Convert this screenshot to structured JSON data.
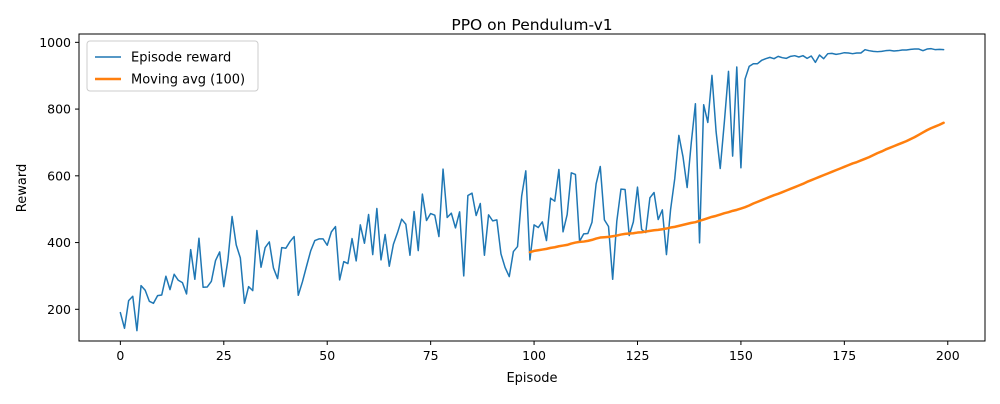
{
  "chart_data": {
    "type": "line",
    "title": "PPO on Pendulum-v1",
    "xlabel": "Episode",
    "ylabel": "Reward",
    "xlim": [
      -10,
      209
    ],
    "ylim": [
      105,
      1025
    ],
    "xticks": [
      0,
      25,
      50,
      75,
      100,
      125,
      150,
      175,
      200
    ],
    "yticks": [
      200,
      400,
      600,
      800,
      1000
    ],
    "grid": false,
    "legend_position": "top-left",
    "series": [
      {
        "name": "Episode reward",
        "color": "#1f77b4",
        "x_start": 0,
        "values": [
          190,
          143,
          226,
          239,
          136,
          271,
          257,
          224,
          218,
          241,
          243,
          299,
          259,
          305,
          287,
          280,
          246,
          379,
          290,
          413,
          266,
          267,
          284,
          346,
          372,
          268,
          348,
          478,
          393,
          354,
          218,
          268,
          256,
          436,
          326,
          385,
          402,
          324,
          292,
          385,
          383,
          403,
          418,
          242,
          282,
          329,
          375,
          406,
          411,
          411,
          392,
          432,
          448,
          288,
          343,
          337,
          412,
          345,
          453,
          398,
          484,
          364,
          502,
          348,
          424,
          329,
          395,
          430,
          470,
          455,
          362,
          493,
          376,
          545,
          466,
          487,
          482,
          418,
          620,
          475,
          488,
          444,
          492,
          300,
          541,
          548,
          481,
          517,
          362,
          483,
          465,
          468,
          366,
          325,
          298,
          373,
          388,
          539,
          615,
          348,
          453,
          445,
          462,
          406,
          533,
          524,
          619,
          432,
          484,
          609,
          604,
          404,
          426,
          427,
          461,
          576,
          628,
          468,
          448,
          290,
          464,
          560,
          559,
          421,
          462,
          566,
          439,
          430,
          534,
          550,
          469,
          498,
          364,
          499,
          591,
          721,
          657,
          565,
          699,
          816,
          399,
          813,
          760,
          901,
          732,
          622,
          762,
          913,
          659,
          926,
          624,
          890,
          928,
          936,
          936,
          946,
          951,
          955,
          951,
          958,
          954,
          952,
          958,
          960,
          956,
          960,
          952,
          959,
          940,
          962,
          951,
          966,
          967,
          964,
          966,
          969,
          968,
          966,
          968,
          968,
          978,
          975,
          973,
          972,
          973,
          975,
          976,
          974,
          975,
          977,
          977,
          979,
          980,
          980,
          975,
          980,
          981,
          978,
          979,
          978
        ]
      },
      {
        "name": "Moving avg (100)",
        "color": "#ff7f0e",
        "x_start": 99,
        "values": [
          371,
          375,
          377,
          379,
          381,
          384,
          386,
          389,
          391,
          393,
          397,
          400,
          402,
          403,
          405,
          408,
          412,
          415,
          416,
          417,
          419,
          421,
          424,
          426,
          427,
          428,
          430,
          431,
          433,
          435,
          437,
          438,
          440,
          442,
          445,
          447,
          450,
          453,
          456,
          459,
          461,
          465,
          469,
          473,
          477,
          480,
          484,
          488,
          491,
          495,
          498,
          502,
          506,
          511,
          517,
          522,
          527,
          532,
          537,
          542,
          546,
          551,
          556,
          561,
          566,
          571,
          576,
          582,
          587,
          592,
          597,
          602,
          607,
          612,
          617,
          622,
          627,
          632,
          637,
          641,
          646,
          651,
          656,
          662,
          668,
          673,
          679,
          684,
          689,
          694,
          699,
          704,
          710,
          716,
          723,
          730,
          737,
          743,
          748,
          753,
          759
        ]
      }
    ]
  }
}
